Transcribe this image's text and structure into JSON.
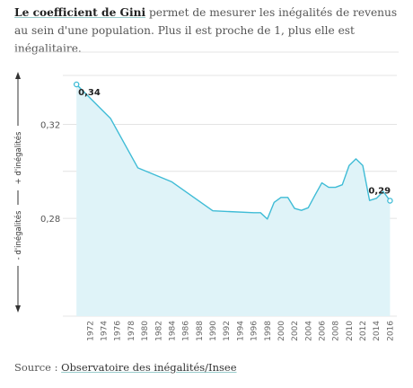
{
  "intro": {
    "highlight": "Le coefficient de Gini",
    "text": " permet de mesurer les inégalités de revenus au sein d'une population. Plus il est proche de 1, plus elle est inégalitaire."
  },
  "source": {
    "label": "Source : ",
    "link_text": "Observatoire des inégalités/Insee"
  },
  "colors": {
    "line": "#3fbcd6",
    "area": "#dff3f8",
    "grid": "#e4e4e4",
    "text": "#555555"
  },
  "chart_data": {
    "type": "area",
    "xlim": [
      1968,
      2017
    ],
    "ylim": [
      0.259,
      0.337
    ],
    "yticks": [
      0.28,
      0.32
    ],
    "ytick_labels": [
      "0,28",
      "0,32"
    ],
    "xticks": [
      1972,
      1974,
      1976,
      1978,
      1980,
      1982,
      1984,
      1986,
      1988,
      1990,
      1992,
      1994,
      1996,
      1998,
      2000,
      2002,
      2004,
      2006,
      2008,
      2010,
      2012,
      2014,
      2016
    ],
    "ylabel_top": "+ d'inégalités",
    "ylabel_bottom": "- d'inégalités",
    "series": [
      {
        "x": [
          1970,
          1975,
          1979,
          1984,
          1990,
          1996,
          1997,
          1998,
          1999,
          2000,
          2001,
          2002,
          2003,
          2004,
          2005,
          2006,
          2007,
          2008,
          2009,
          2010,
          2011,
          2012,
          2013,
          2014,
          2015,
          2016
        ],
        "values": [
          0.337,
          0.3225,
          0.3015,
          0.2955,
          0.2832,
          0.2824,
          0.2824,
          0.2797,
          0.2868,
          0.2889,
          0.2889,
          0.2842,
          0.2834,
          0.2845,
          0.2899,
          0.2951,
          0.2932,
          0.2932,
          0.2943,
          0.3025,
          0.3053,
          0.3025,
          0.2876,
          0.2885,
          0.2914,
          0.2875
        ]
      }
    ],
    "annotations": [
      {
        "text": "0,34",
        "x": 1970,
        "y": 0.337
      },
      {
        "text": "0,29",
        "x": 2016,
        "y": 0.2875
      }
    ]
  }
}
